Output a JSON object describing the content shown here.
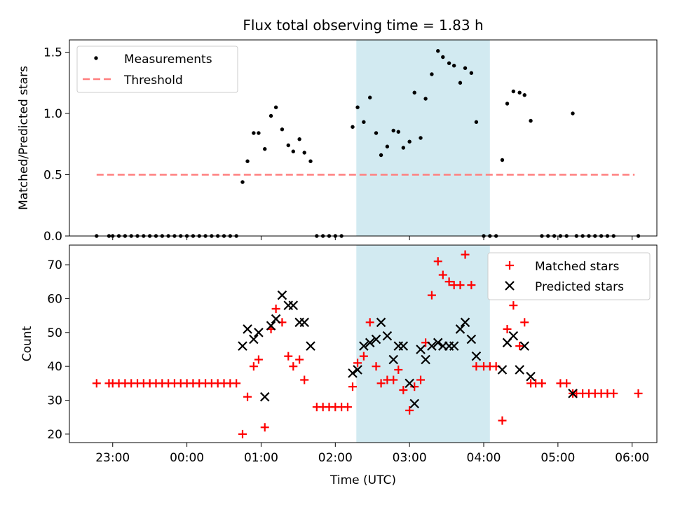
{
  "title": "Flux total observing time = 1.83 h",
  "shaded_color": "#add8e6",
  "chart_data": [
    {
      "type": "scatter",
      "ylabel": "Matched/Predicted stars",
      "ylim": [
        0,
        1.6
      ],
      "yticks": [
        0.0,
        0.5,
        1.0,
        1.5
      ],
      "ytick_labels": [
        "0.0",
        "0.5",
        "1.0",
        "1.5"
      ],
      "shaded_span": [
        "02:17",
        "04:05"
      ],
      "legend_placement": "upper-left",
      "legend": {
        "measurements": "Measurements",
        "threshold": "Threshold"
      },
      "threshold": {
        "y": 0.5,
        "x_start": "22:47",
        "x_end": "06:02",
        "color": "#ff7f7f"
      },
      "series": [
        {
          "name": "Measurements",
          "color": "#000000",
          "points": [
            [
              "22:47",
              0
            ],
            [
              "22:57",
              0
            ],
            [
              "23:00",
              0
            ],
            [
              "23:05",
              0
            ],
            [
              "23:10",
              0
            ],
            [
              "23:15",
              0
            ],
            [
              "23:20",
              0
            ],
            [
              "23:25",
              0
            ],
            [
              "23:30",
              0
            ],
            [
              "23:35",
              0
            ],
            [
              "23:40",
              0
            ],
            [
              "23:45",
              0
            ],
            [
              "23:50",
              0
            ],
            [
              "23:55",
              0
            ],
            [
              "00:00",
              0
            ],
            [
              "00:05",
              0
            ],
            [
              "00:10",
              0
            ],
            [
              "00:15",
              0
            ],
            [
              "00:20",
              0
            ],
            [
              "00:25",
              0
            ],
            [
              "00:30",
              0
            ],
            [
              "00:35",
              0
            ],
            [
              "00:40",
              0
            ],
            [
              "00:45",
              0.44
            ],
            [
              "00:49",
              0.61
            ],
            [
              "00:54",
              0.84
            ],
            [
              "00:58",
              0.84
            ],
            [
              "01:03",
              0.71
            ],
            [
              "01:08",
              0.98
            ],
            [
              "01:12",
              1.05
            ],
            [
              "01:17",
              0.87
            ],
            [
              "01:22",
              0.74
            ],
            [
              "01:26",
              0.69
            ],
            [
              "01:31",
              0.79
            ],
            [
              "01:35",
              0.68
            ],
            [
              "01:40",
              0.61
            ],
            [
              "01:45",
              0
            ],
            [
              "01:50",
              0
            ],
            [
              "01:55",
              0
            ],
            [
              "02:00",
              0
            ],
            [
              "02:05",
              0
            ],
            [
              "02:14",
              0.89
            ],
            [
              "02:18",
              1.05
            ],
            [
              "02:23",
              0.93
            ],
            [
              "02:28",
              1.13
            ],
            [
              "02:33",
              0.84
            ],
            [
              "02:37",
              0.66
            ],
            [
              "02:42",
              0.73
            ],
            [
              "02:47",
              0.86
            ],
            [
              "02:51",
              0.85
            ],
            [
              "02:55",
              0.72
            ],
            [
              "03:00",
              0.77
            ],
            [
              "03:04",
              1.17
            ],
            [
              "03:09",
              0.8
            ],
            [
              "03:13",
              1.12
            ],
            [
              "03:18",
              1.32
            ],
            [
              "03:23",
              1.51
            ],
            [
              "03:27",
              1.46
            ],
            [
              "03:32",
              1.41
            ],
            [
              "03:36",
              1.39
            ],
            [
              "03:41",
              1.25
            ],
            [
              "03:45",
              1.37
            ],
            [
              "03:50",
              1.33
            ],
            [
              "03:54",
              0.93
            ],
            [
              "04:00",
              0
            ],
            [
              "04:05",
              0
            ],
            [
              "04:10",
              0
            ],
            [
              "04:15",
              0.62
            ],
            [
              "04:19",
              1.08
            ],
            [
              "04:24",
              1.18
            ],
            [
              "04:29",
              1.17
            ],
            [
              "04:33",
              1.15
            ],
            [
              "04:38",
              0.94
            ],
            [
              "04:47",
              0
            ],
            [
              "04:52",
              0
            ],
            [
              "04:57",
              0
            ],
            [
              "05:02",
              0
            ],
            [
              "05:07",
              0
            ],
            [
              "05:12",
              1.0
            ],
            [
              "05:15",
              0
            ],
            [
              "05:20",
              0
            ],
            [
              "05:25",
              0
            ],
            [
              "05:30",
              0
            ],
            [
              "05:35",
              0
            ],
            [
              "05:40",
              0
            ],
            [
              "05:45",
              0
            ],
            [
              "06:05",
              0
            ]
          ]
        }
      ]
    },
    {
      "type": "scatter",
      "ylabel": "Count",
      "xlabel": "Time (UTC)",
      "ylim": [
        17.5,
        75.8
      ],
      "yticks": [
        20,
        30,
        40,
        50,
        60,
        70
      ],
      "ytick_labels": [
        "20",
        "30",
        "40",
        "50",
        "60",
        "70"
      ],
      "xlim": [
        "22:25",
        "06:20"
      ],
      "xticks": [
        "23:00",
        "00:00",
        "01:00",
        "02:00",
        "03:00",
        "04:00",
        "05:00",
        "06:00"
      ],
      "xtick_labels": [
        "23:00",
        "00:00",
        "01:00",
        "02:00",
        "03:00",
        "04:00",
        "05:00",
        "06:00"
      ],
      "shaded_span": [
        "02:17",
        "04:05"
      ],
      "legend_placement": "upper-right",
      "series": [
        {
          "name": "Matched stars",
          "marker": "plus",
          "color": "#ff0000",
          "points": [
            [
              "22:47",
              35
            ],
            [
              "22:57",
              35
            ],
            [
              "23:00",
              35
            ],
            [
              "23:05",
              35
            ],
            [
              "23:10",
              35
            ],
            [
              "23:15",
              35
            ],
            [
              "23:20",
              35
            ],
            [
              "23:25",
              35
            ],
            [
              "23:30",
              35
            ],
            [
              "23:35",
              35
            ],
            [
              "23:40",
              35
            ],
            [
              "23:45",
              35
            ],
            [
              "23:50",
              35
            ],
            [
              "23:55",
              35
            ],
            [
              "00:00",
              35
            ],
            [
              "00:05",
              35
            ],
            [
              "00:10",
              35
            ],
            [
              "00:15",
              35
            ],
            [
              "00:20",
              35
            ],
            [
              "00:25",
              35
            ],
            [
              "00:30",
              35
            ],
            [
              "00:35",
              35
            ],
            [
              "00:40",
              35
            ],
            [
              "00:45",
              20
            ],
            [
              "00:49",
              31
            ],
            [
              "00:54",
              40
            ],
            [
              "00:58",
              42
            ],
            [
              "01:03",
              22
            ],
            [
              "01:08",
              51
            ],
            [
              "01:12",
              57
            ],
            [
              "01:17",
              53
            ],
            [
              "01:22",
              43
            ],
            [
              "01:26",
              40
            ],
            [
              "01:31",
              42
            ],
            [
              "01:35",
              36
            ],
            [
              "01:45",
              28
            ],
            [
              "01:50",
              28
            ],
            [
              "01:55",
              28
            ],
            [
              "02:00",
              28
            ],
            [
              "02:05",
              28
            ],
            [
              "02:10",
              28
            ],
            [
              "02:14",
              34
            ],
            [
              "02:18",
              41
            ],
            [
              "02:23",
              43
            ],
            [
              "02:28",
              53
            ],
            [
              "02:33",
              40
            ],
            [
              "02:37",
              35
            ],
            [
              "02:42",
              36
            ],
            [
              "02:47",
              36
            ],
            [
              "02:51",
              39
            ],
            [
              "02:55",
              33
            ],
            [
              "03:00",
              27
            ],
            [
              "03:04",
              34
            ],
            [
              "03:09",
              36
            ],
            [
              "03:13",
              47
            ],
            [
              "03:18",
              61
            ],
            [
              "03:23",
              71
            ],
            [
              "03:27",
              67
            ],
            [
              "03:32",
              65
            ],
            [
              "03:36",
              64
            ],
            [
              "03:41",
              64
            ],
            [
              "03:45",
              73
            ],
            [
              "03:50",
              64
            ],
            [
              "03:54",
              40
            ],
            [
              "04:00",
              40
            ],
            [
              "04:05",
              40
            ],
            [
              "04:10",
              40
            ],
            [
              "04:15",
              24
            ],
            [
              "04:19",
              51
            ],
            [
              "04:24",
              58
            ],
            [
              "04:29",
              46
            ],
            [
              "04:33",
              53
            ],
            [
              "04:38",
              35
            ],
            [
              "04:42",
              35
            ],
            [
              "04:47",
              35
            ],
            [
              "05:02",
              35
            ],
            [
              "05:07",
              35
            ],
            [
              "05:12",
              32
            ],
            [
              "05:15",
              32
            ],
            [
              "05:20",
              32
            ],
            [
              "05:25",
              32
            ],
            [
              "05:30",
              32
            ],
            [
              "05:35",
              32
            ],
            [
              "05:40",
              32
            ],
            [
              "05:45",
              32
            ],
            [
              "06:05",
              32
            ]
          ]
        },
        {
          "name": "Predicted stars",
          "marker": "x",
          "color": "#000000",
          "points": [
            [
              "00:45",
              46
            ],
            [
              "00:49",
              51
            ],
            [
              "00:54",
              48
            ],
            [
              "00:58",
              50
            ],
            [
              "01:03",
              31
            ],
            [
              "01:08",
              52
            ],
            [
              "01:12",
              54
            ],
            [
              "01:17",
              61
            ],
            [
              "01:22",
              58
            ],
            [
              "01:26",
              58
            ],
            [
              "01:31",
              53
            ],
            [
              "01:35",
              53
            ],
            [
              "01:40",
              46
            ],
            [
              "02:14",
              38
            ],
            [
              "02:18",
              39
            ],
            [
              "02:23",
              46
            ],
            [
              "02:28",
              47
            ],
            [
              "02:33",
              48
            ],
            [
              "02:37",
              53
            ],
            [
              "02:42",
              49
            ],
            [
              "02:47",
              42
            ],
            [
              "02:51",
              46
            ],
            [
              "02:55",
              46
            ],
            [
              "03:00",
              35
            ],
            [
              "03:04",
              29
            ],
            [
              "03:09",
              45
            ],
            [
              "03:13",
              42
            ],
            [
              "03:18",
              46
            ],
            [
              "03:23",
              47
            ],
            [
              "03:27",
              46
            ],
            [
              "03:32",
              46
            ],
            [
              "03:36",
              46
            ],
            [
              "03:41",
              51
            ],
            [
              "03:45",
              53
            ],
            [
              "03:50",
              48
            ],
            [
              "03:54",
              43
            ],
            [
              "04:15",
              39
            ],
            [
              "04:19",
              47
            ],
            [
              "04:24",
              49
            ],
            [
              "04:29",
              39
            ],
            [
              "04:33",
              46
            ],
            [
              "04:38",
              37
            ],
            [
              "05:12",
              32
            ]
          ]
        }
      ]
    }
  ]
}
